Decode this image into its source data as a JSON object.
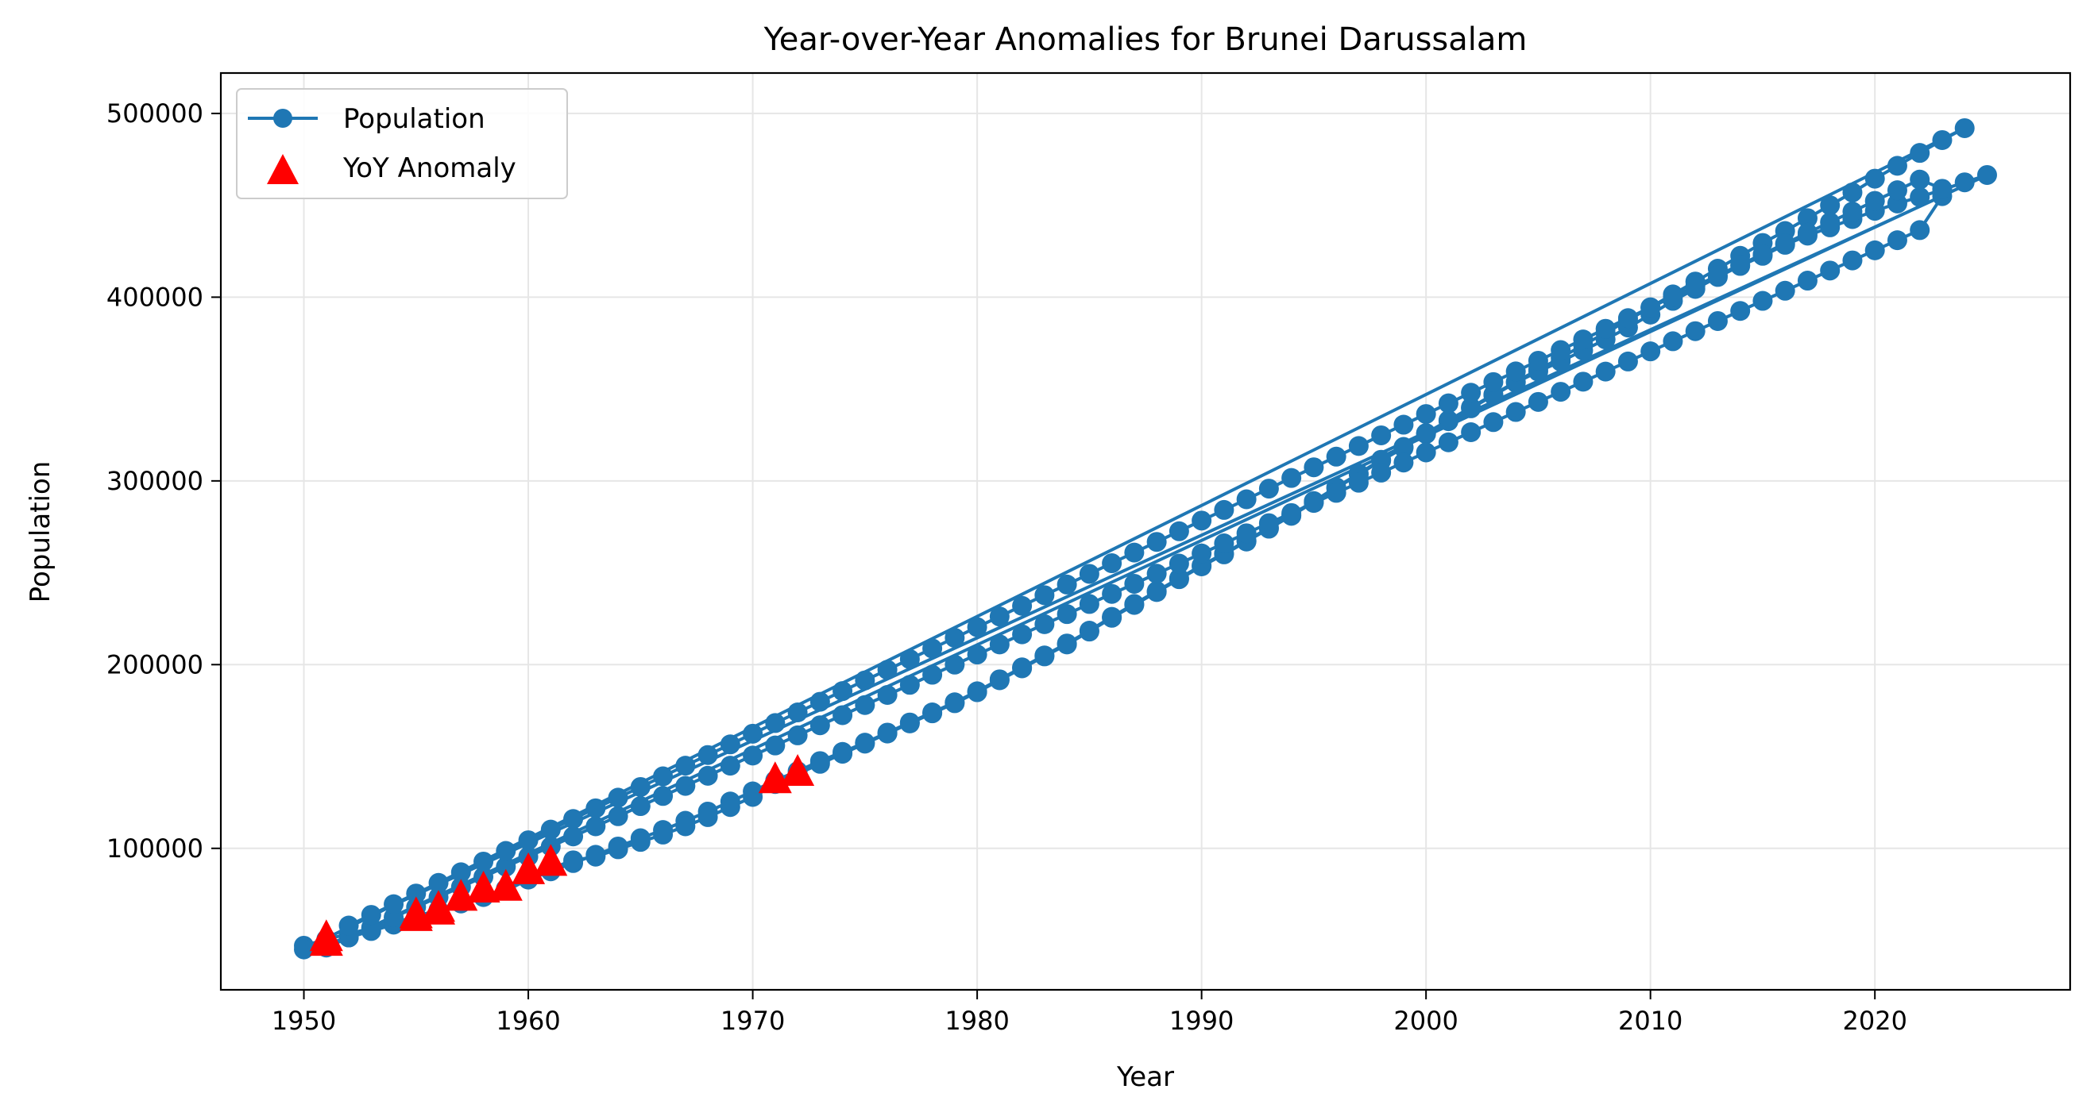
{
  "chart_data": {
    "type": "line",
    "title": "Year-over-Year Anomalies for Brunei Darussalam",
    "xlabel": "Year",
    "ylabel": "Population",
    "xlim": [
      1946.3,
      2028.7
    ],
    "ylim": [
      23000,
      522000
    ],
    "xticks": [
      1950,
      1960,
      1970,
      1980,
      1990,
      2000,
      2010,
      2020
    ],
    "yticks": [
      100000,
      200000,
      300000,
      400000,
      500000
    ],
    "grid": true,
    "legend_position": "top-left",
    "colors": {
      "line": "#1f77b4",
      "anomaly": "#ff0000"
    },
    "series": [
      {
        "name": "Population",
        "style": "line-marker",
        "segments": [
          {
            "x": [
              1950,
              1951,
              1952,
              1953,
              1954,
              1955,
              1956,
              1957,
              1958,
              1959,
              1960,
              1961,
              1962,
              1963,
              1964,
              1965,
              1966,
              1967,
              1968,
              1969,
              1970,
              1971,
              1972,
              1973,
              1974,
              1975,
              1976,
              1977,
              1978,
              1979,
              1980,
              1981,
              1982,
              1983,
              1984,
              1985,
              1986,
              1987,
              1988,
              1989,
              1990,
              1991,
              1992,
              1993,
              1994,
              1995,
              1996,
              1997,
              1998,
              1999,
              2000,
              2001,
              2002,
              2003,
              2004,
              2005,
              2006,
              2007,
              2008,
              2009,
              2010,
              2011,
              2012,
              2013,
              2014,
              2015,
              2016,
              2017,
              2018,
              2019,
              2020,
              2021,
              2022,
              2023,
              2024
            ],
            "y": [
              47000,
              50500,
              53500,
              56500,
              59500,
              63000,
              66500,
              70000,
              73500,
              77000,
              83000,
              87500,
              92000,
              96500,
              101000,
              105500,
              110000,
              115000,
              120000,
              125500,
              131000,
              137000,
              142000,
              147500,
              152500,
              157500,
              163000,
              168500,
              174000,
              179500,
              185500,
              192000,
              198500,
              205000,
              211500,
              218500,
              226000,
              233000,
              240000,
              247000,
              254000,
              260500,
              267500,
              274500,
              281500,
              289000,
              296500,
              304000,
              311500,
              318500,
              326000,
              333000,
              340000,
              347000,
              354000,
              360500,
              367000,
              374000,
              380500,
              387500,
              394500,
              401500,
              408500,
              415500,
              422500,
              429500,
              436000,
              443000,
              450000,
              457000,
              464500,
              471500,
              478500,
              485500,
              492000
            ]
          },
          {
            "x": [
              1950,
              1951,
              1952,
              1953,
              1954,
              1955,
              1956,
              1957,
              1958,
              1959,
              1960,
              1961,
              1962,
              1963,
              1964,
              1965,
              1966,
              1967,
              1968,
              1969,
              1970,
              1971,
              1972,
              1973,
              1974,
              1975,
              1976,
              1977,
              1978,
              1979,
              1980,
              1981,
              1982,
              1983,
              1984,
              1985,
              1986,
              1987,
              1988,
              1989,
              1990,
              1991,
              1992,
              1993,
              1994,
              1995,
              1996,
              1997,
              1998,
              1999,
              2000,
              2001,
              2002,
              2003,
              2004,
              2005,
              2006,
              2007,
              2008,
              2009,
              2010,
              2011,
              2012,
              2013,
              2014,
              2015,
              2016,
              2017,
              2018,
              2019,
              2020,
              2021,
              2022,
              2023,
              2024,
              2025
            ],
            "y": [
              45000,
              48000,
              51500,
              55000,
              58500,
              61500,
              65000,
              70500,
              74000,
              78000,
              84000,
              89000,
              93500,
              95500,
              99500,
              103500,
              107500,
              112000,
              117000,
              122500,
              128000,
              135000,
              140500,
              146000,
              151500,
              157000,
              162500,
              168000,
              173500,
              179000,
              185000,
              191500,
              198000,
              204500,
              211000,
              218000,
              225500,
              232500,
              239500,
              246500,
              253500,
              260000,
              267000,
              274000,
              281000,
              288500,
              296000,
              303500,
              311000,
              318000,
              325500,
              332500,
              339500,
              346500,
              353500,
              359500,
              365000,
              371000,
              377000,
              383500,
              390500,
              398000,
              404500,
              411000,
              417000,
              422500,
              428500,
              433500,
              438000,
              442500,
              447000,
              451000,
              454500,
              458500,
              462500,
              466500
            ]
          },
          {
            "x": [
              1951,
              1952,
              1953,
              1954,
              1955,
              1956,
              1957,
              1958,
              1959,
              1960,
              1961,
              1962,
              1963,
              1964,
              1965,
              1966,
              1967,
              1968,
              1969,
              1970,
              1971,
              1972,
              1973,
              1974,
              1975,
              1976,
              1977,
              1978,
              1979,
              1980,
              1981,
              1982,
              1983,
              1984,
              1985,
              1986,
              1987,
              1988,
              1989,
              1990,
              1991,
              1992,
              1993,
              1994,
              1995,
              1996,
              1997,
              1998,
              1999,
              2000,
              2001,
              2002,
              2003,
              2004,
              2005,
              2006,
              2007,
              2008,
              2009,
              2010,
              2011,
              2012,
              2013,
              2014,
              2015,
              2016,
              2017,
              2018,
              2019,
              2020,
              2021,
              2022,
              2023
            ],
            "y": [
              46000,
              51500,
              57000,
              62500,
              68000,
              73500,
              79000,
              84500,
              90000,
              95500,
              101000,
              106500,
              112000,
              117500,
              123000,
              128500,
              134000,
              139500,
              145000,
              150500,
              156000,
              161500,
              167000,
              172500,
              178000,
              183500,
              189000,
              194500,
              200000,
              205500,
              211000,
              216500,
              222000,
              227500,
              233000,
              238500,
              244000,
              249500,
              255000,
              260500,
              266000,
              271500,
              277000,
              282500,
              288000,
              293500,
              299000,
              304500,
              310000,
              315500,
              321000,
              326500,
              332000,
              337500,
              343000,
              348500,
              354000,
              359500,
              365000,
              370500,
              376000,
              381500,
              387000,
              392500,
              398000,
              403500,
              409000,
              414500,
              420000,
              425500,
              431000,
              436500,
              455000
            ]
          },
          {
            "x": [
              1952,
              1953,
              1954,
              1955,
              1956,
              1957,
              1958,
              1959,
              1960,
              1961,
              1962,
              1963,
              1964,
              1965,
              1966,
              1967,
              1968,
              1969,
              1970,
              1971,
              1972,
              1973,
              1974,
              1975,
              1976,
              1977,
              1978,
              1979,
              1980,
              1981,
              1982,
              1983,
              1984,
              1985,
              1986,
              1987,
              1988,
              1989,
              1990,
              1991,
              1992,
              1993,
              1994,
              1995,
              1996,
              1997,
              1998,
              1999,
              2000,
              2001,
              2002,
              2003,
              2004,
              2005,
              2006,
              2007,
              2008,
              2009,
              2010,
              2011,
              2012,
              2013,
              2014,
              2015,
              2016,
              2017,
              2018,
              2019,
              2020,
              2021,
              2022,
              2023
            ],
            "y": [
              58000,
              63800,
              69600,
              75400,
              81200,
              87000,
              92800,
              98600,
              104400,
              110200,
              116000,
              121800,
              127600,
              133400,
              139200,
              145000,
              150800,
              156600,
              162400,
              168200,
              174000,
              179800,
              185600,
              191400,
              197200,
              203000,
              208800,
              214600,
              220400,
              226200,
              232000,
              237800,
              243600,
              249400,
              255200,
              261000,
              266800,
              272600,
              278400,
              284200,
              290000,
              295800,
              301600,
              307400,
              313200,
              319000,
              324800,
              330600,
              336400,
              342200,
              348000,
              353800,
              359600,
              365400,
              371200,
              377000,
              382800,
              388600,
              394400,
              400200,
              406000,
              411800,
              417600,
              423400,
              429200,
              435000,
              440800,
              446600,
              452400,
              458200,
              464000,
              459000
            ]
          }
        ]
      },
      {
        "name": "YoY Anomaly",
        "style": "marker",
        "x": [
          1951,
          1951,
          1955,
          1955,
          1956,
          1956,
          1957,
          1958,
          1959,
          1960,
          1961,
          1971,
          1972
        ],
        "y": [
          50500,
          48000,
          63000,
          61500,
          66500,
          65000,
          72500,
          77000,
          78000,
          87000,
          91500,
          136500,
          140500
        ]
      }
    ]
  }
}
